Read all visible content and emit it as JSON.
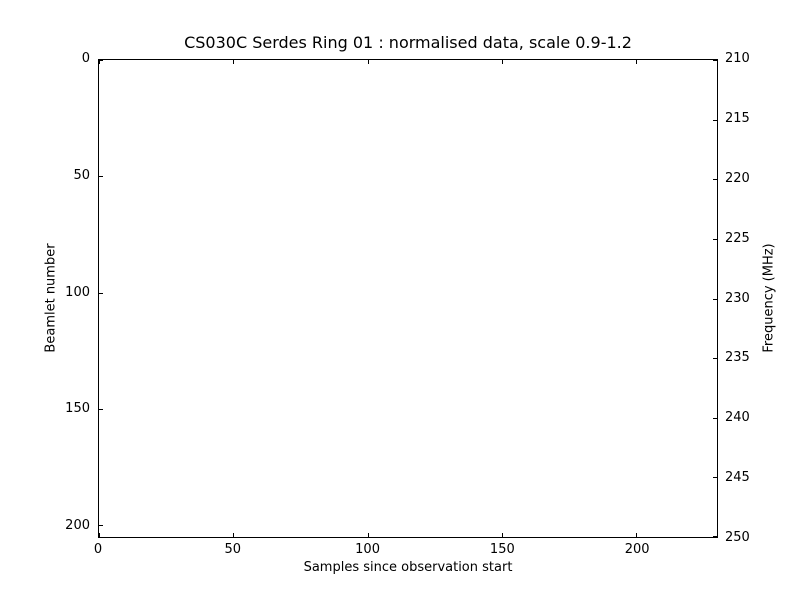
{
  "chart_data": {
    "type": "heatmap",
    "title": "CS030C Serdes Ring 01 : normalised data, scale 0.9-1.2",
    "xlabel": "Samples since observation start",
    "ylabel_left": "Beamlet number",
    "ylabel_right": "Frequency (MHz)",
    "x_ticks": [
      0,
      50,
      100,
      150,
      200
    ],
    "xlim": [
      0,
      230
    ],
    "y_left_ticks": [
      0,
      50,
      100,
      150,
      200
    ],
    "y_left_lim": [
      0,
      205
    ],
    "y_left_inverted": true,
    "y_right_ticks": [
      210,
      215,
      220,
      225,
      230,
      235,
      240,
      245,
      250
    ],
    "y_right_lim": [
      210,
      250
    ],
    "grid": false,
    "legend": null,
    "series": [],
    "plot_area_content": "empty",
    "tick_direction": "in",
    "colors": {
      "text": "#000000",
      "spines": "#000000",
      "background": "#ffffff"
    }
  }
}
